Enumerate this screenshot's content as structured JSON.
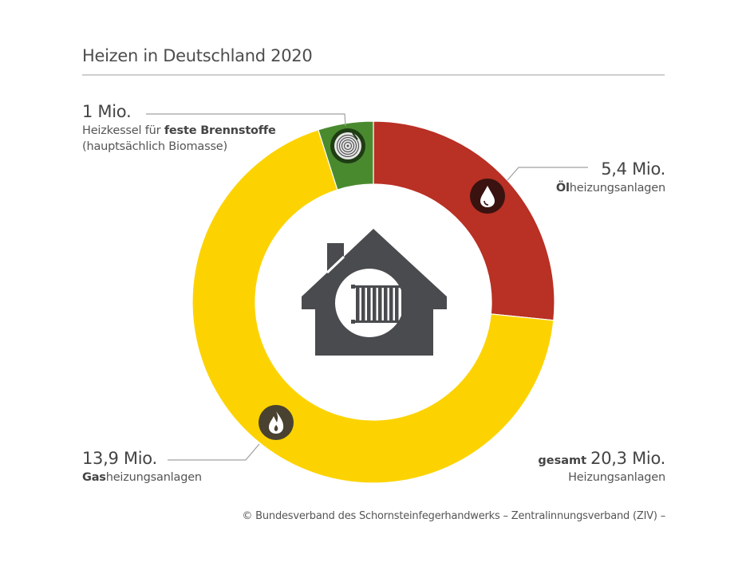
{
  "header": {
    "title": "Heizen in Deutschland 2020"
  },
  "chart_data": {
    "type": "pie",
    "subtype": "donut",
    "title": "Heizen in Deutschland 2020",
    "unit": "Mio.",
    "total": 20.3,
    "total_label": "Heizungsanlagen",
    "categories": [
      "Ölheizungsanlagen",
      "Gasheizungsanlagen",
      "Heizkessel für feste Brennstoffe (hauptsächlich Biomasse)"
    ],
    "values": [
      5.4,
      13.9,
      1.0
    ],
    "colors": [
      "#b93024",
      "#fcd300",
      "#4a8a2f"
    ],
    "center_icon": "house-radiator-icon",
    "legend_position": "annotations"
  },
  "labels": {
    "solid": {
      "value": "1 Mio.",
      "line1_pre": "Heizkessel für ",
      "line1_bold": "feste Brennstoffe",
      "line2": "(hauptsächlich Biomasse)",
      "icon": "wood-log-icon"
    },
    "oil": {
      "value": "5,4 Mio.",
      "desc_bold": "Öl",
      "desc_rest": "heizungsanlagen",
      "icon": "oil-drop-icon"
    },
    "gas": {
      "value": "13,9 Mio.",
      "desc_bold": "Gas",
      "desc_rest": "heizungsanlagen",
      "icon": "flame-icon"
    },
    "total": {
      "prefix": "gesamt",
      "value": "20,3 Mio.",
      "desc": "Heizungsanlagen"
    }
  },
  "footer": {
    "source": "© Bundesverband des Schornsteinfegerhandwerks – Zentralinnungsverband (ZIV) –"
  },
  "colors": {
    "oil": "#b93024",
    "gas": "#fcd300",
    "solid": "#4a8a2f",
    "icon_dark": "#4a4b4e",
    "leader_line": "#9a9a9a"
  }
}
